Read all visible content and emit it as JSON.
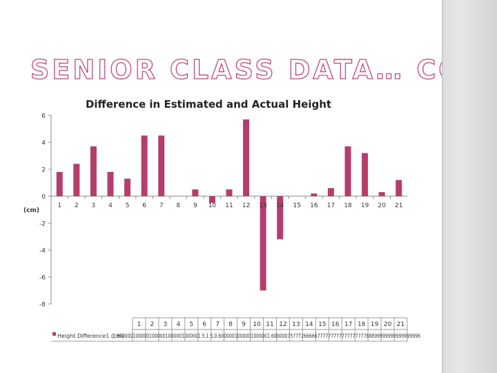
{
  "slide": {
    "title": "SENIOR CLASS DATA… CONT’D"
  },
  "colors": {
    "bar": "#b53d6c",
    "title_outline": "#c0487a",
    "axis": "#888888",
    "grid_table": "#9a9a9a"
  },
  "chart_data": {
    "type": "bar",
    "title": "Difference in Estimated and Actual Height",
    "ylabel": "(cm)",
    "xlabel": "",
    "ylim": [
      -8,
      6
    ],
    "yticks": [
      6,
      4,
      2,
      0,
      -2,
      -4,
      -6,
      -8
    ],
    "grid": false,
    "categories": [
      "1",
      "2",
      "3",
      "4",
      "5",
      "6",
      "7",
      "8",
      "9",
      "10",
      "11",
      "12",
      "13",
      "14",
      "15",
      "16",
      "17",
      "18",
      "19",
      "20",
      "21"
    ],
    "series": [
      {
        "name": "Height Difference",
        "values": [
          1.8,
          2.4,
          3.7,
          1.8,
          1.3,
          4.5,
          4.5,
          0,
          0.5,
          -0.5,
          0.5,
          5.7,
          -7.0,
          -3.2,
          0,
          0.2,
          0.6,
          3.7,
          3.2,
          0.3,
          1.2
        ]
      }
    ],
    "data_table_row_label": "Height Difference1 (cm)",
    "data_table_overlap_text": "1.8000001000001000001000001000001.5,1.5,0.6000001000001000001.6000007577726666677777777777777777788899999999999999996"
  }
}
